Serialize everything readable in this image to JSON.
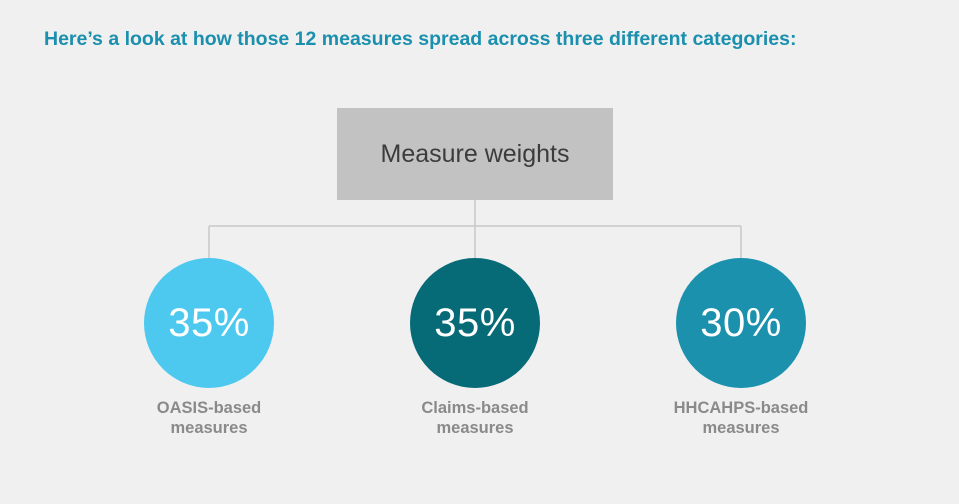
{
  "heading": "Here’s a look at how those 12 measures spread across three different categories:",
  "root": {
    "label": "Measure weights",
    "color": "#c2c2c2"
  },
  "connector_color": "#c8c8c8",
  "categories": [
    {
      "value": "35%",
      "label_line1": "OASIS-based",
      "label_line2": "measures",
      "color": "#4dc9f0"
    },
    {
      "value": "35%",
      "label_line1": "Claims-based",
      "label_line2": "measures",
      "color": "#066a77"
    },
    {
      "value": "30%",
      "label_line1": "HHCAHPS-based",
      "label_line2": "measures",
      "color": "#1b91ae"
    }
  ]
}
